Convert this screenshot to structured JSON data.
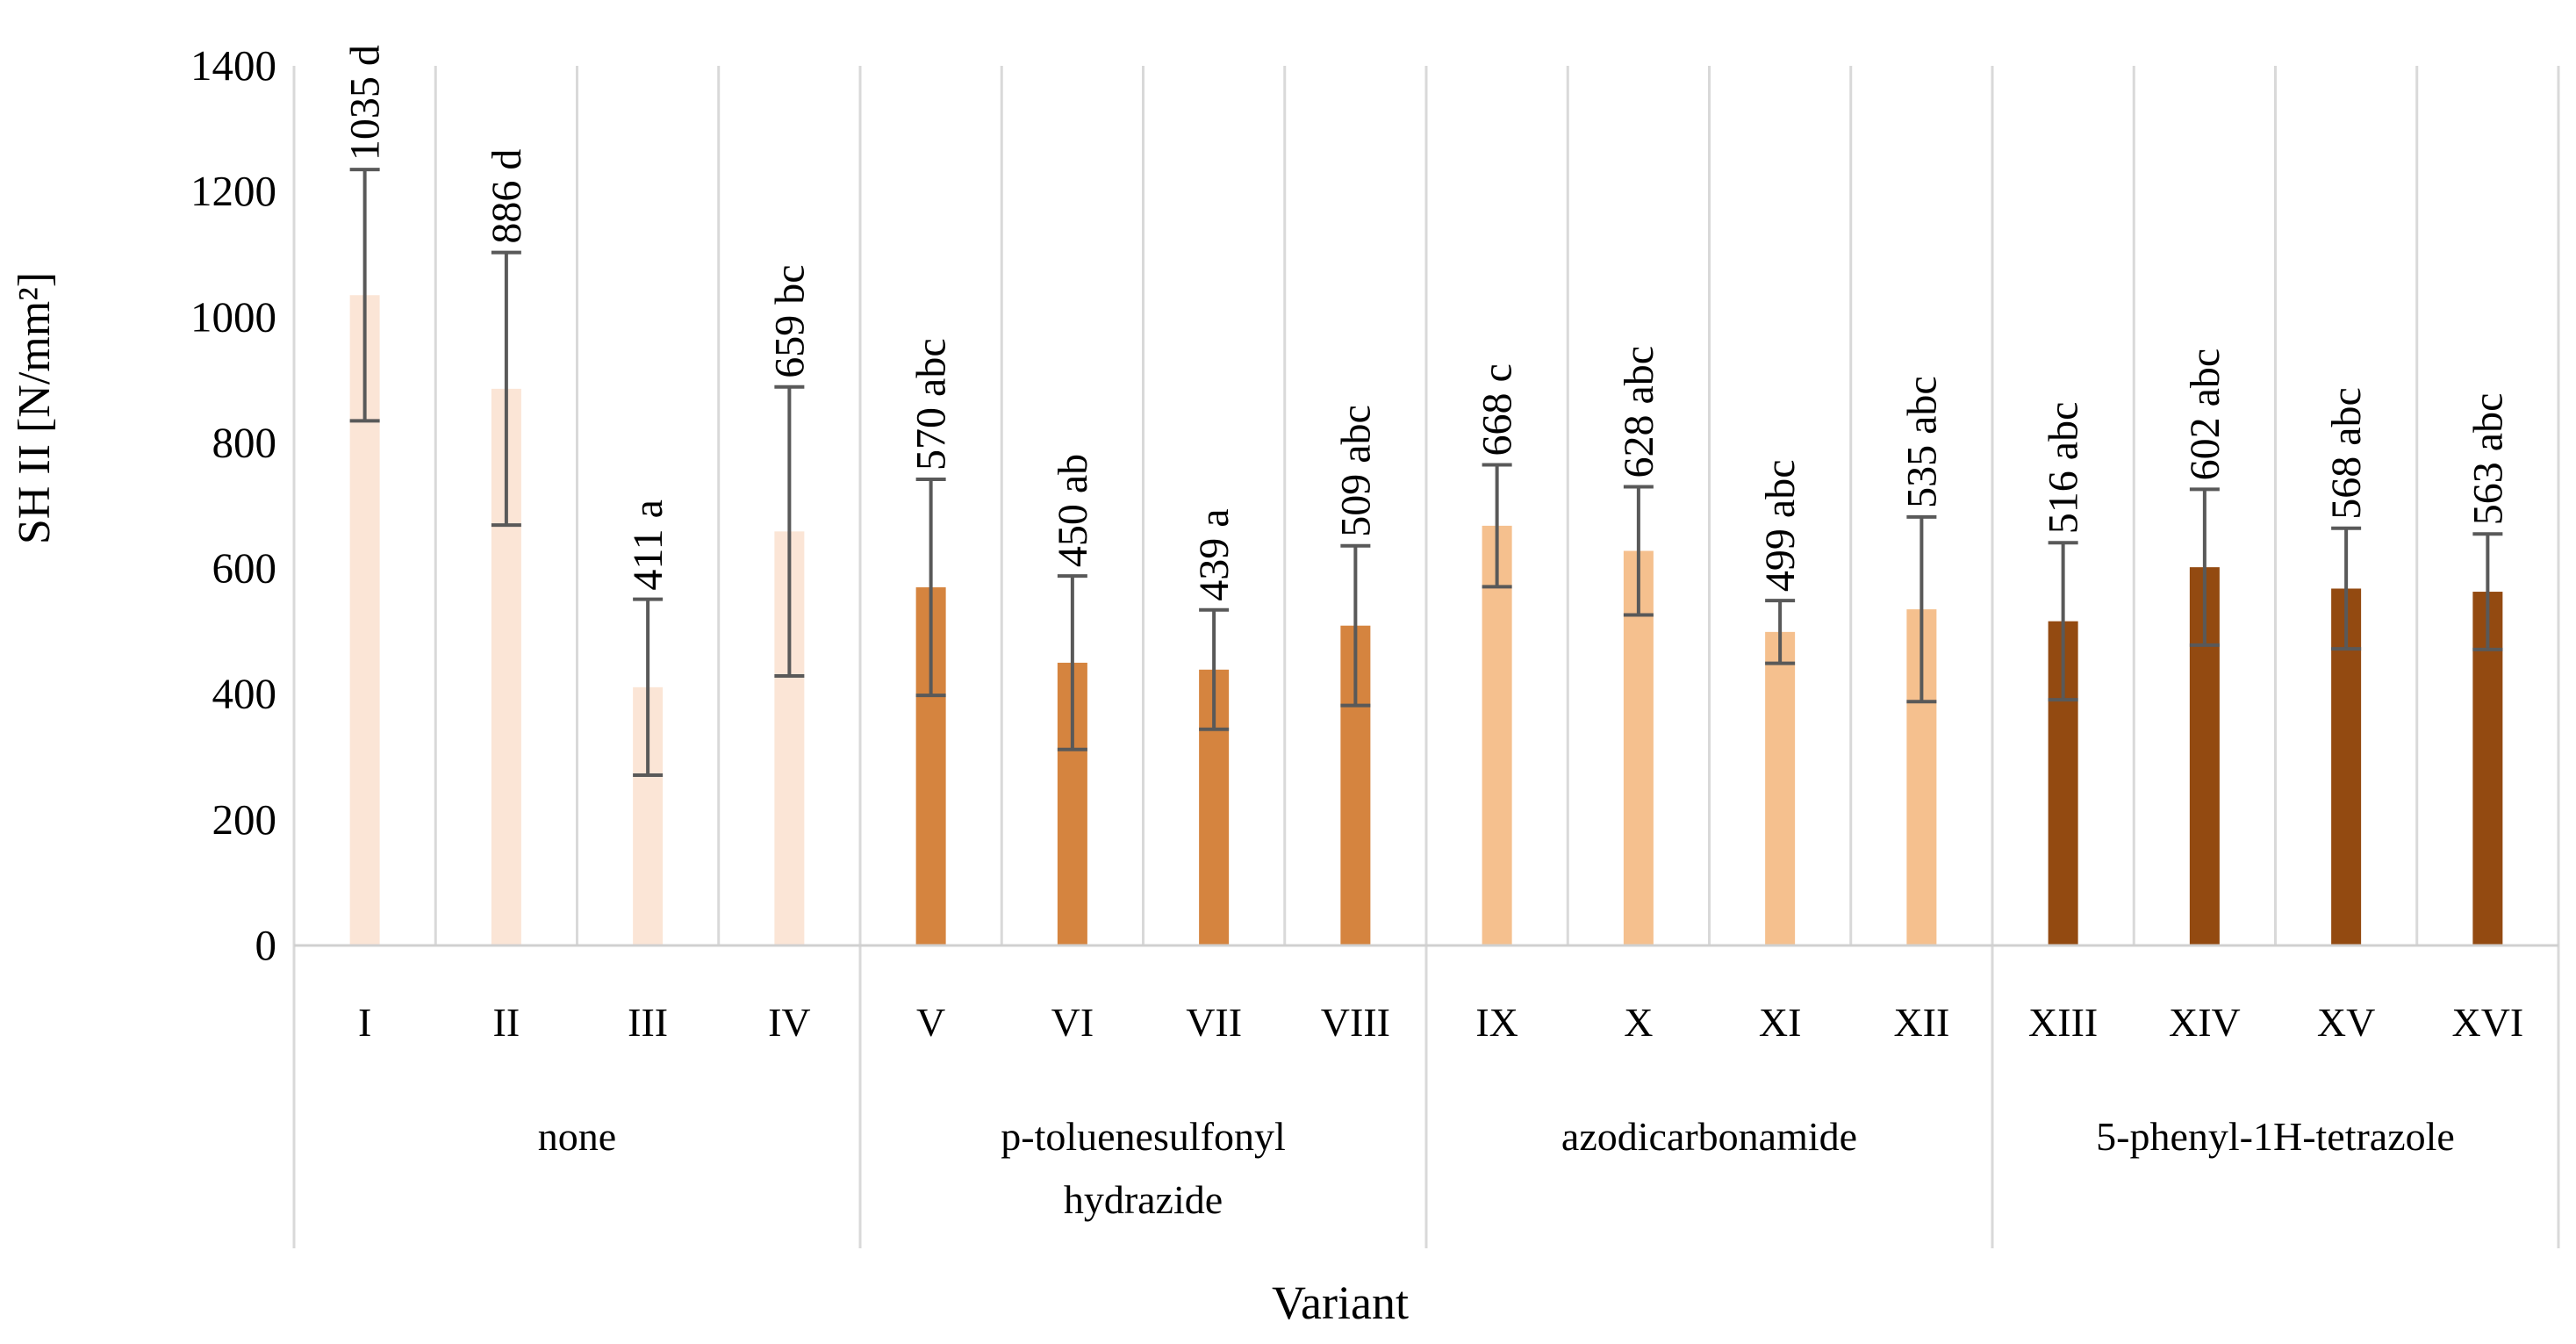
{
  "chart_data": {
    "type": "bar",
    "ylabel": "SH II [N/mm²]",
    "xlabel": "Variant",
    "ylim": [
      0,
      1400
    ],
    "yticks": [
      0,
      200,
      400,
      600,
      800,
      1000,
      1200,
      1400
    ],
    "categories": [
      "I",
      "II",
      "III",
      "IV",
      "V",
      "VI",
      "VII",
      "VIII",
      "IX",
      "X",
      "XI",
      "XII",
      "XIII",
      "XIV",
      "XV",
      "XVI"
    ],
    "values": [
      1035,
      886,
      411,
      659,
      570,
      450,
      439,
      509,
      668,
      628,
      499,
      535,
      516,
      602,
      568,
      563
    ],
    "errors": [
      200,
      217,
      140,
      230,
      172,
      138,
      95,
      127,
      97,
      102,
      50,
      147,
      125,
      124,
      96,
      92
    ],
    "data_labels": [
      "1035 d",
      "886 d",
      "411 a",
      "659  bc",
      "570 abc",
      "450 ab",
      "439 a",
      "509 abc",
      "668 c",
      "628 abc",
      "499 abc",
      "535 abc",
      "516 abc",
      "602 abc",
      "568 abc",
      "563 abc"
    ],
    "groups": [
      {
        "name": "none",
        "lines": [
          "none"
        ],
        "color": "#fbe5d6",
        "start": 0,
        "count": 4
      },
      {
        "name": "p-toluenesulfonyl hydrazide",
        "lines": [
          "p-toluenesulfonyl",
          "hydrazide"
        ],
        "color": "#d5843f",
        "start": 4,
        "count": 4
      },
      {
        "name": "azodicarbonamide",
        "lines": [
          "azodicarbonamide"
        ],
        "color": "#f5c08e",
        "start": 8,
        "count": 4
      },
      {
        "name": "5-phenyl-1H-tetrazole",
        "lines": [
          "5-phenyl-1H-tetrazole"
        ],
        "color": "#934a11",
        "start": 12,
        "count": 4
      }
    ]
  }
}
